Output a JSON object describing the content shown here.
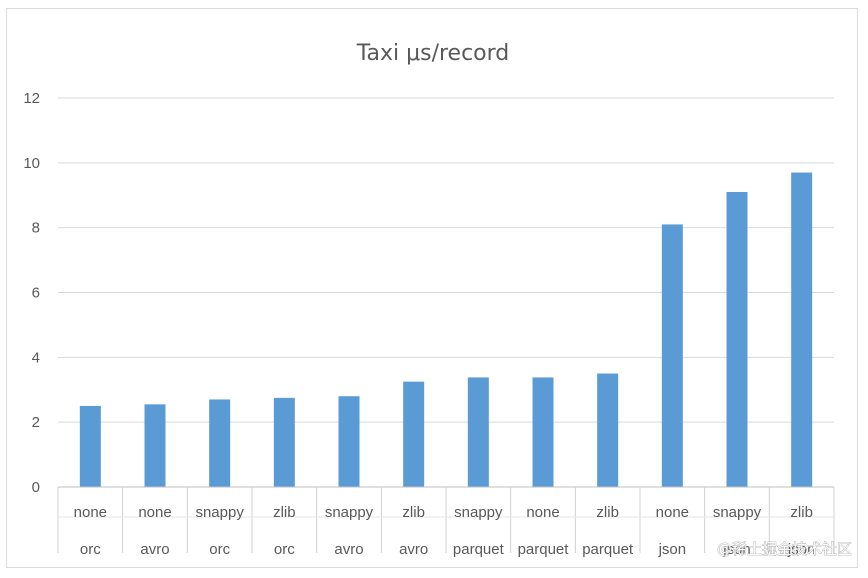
{
  "chart_data": {
    "type": "bar",
    "title": "Taxi μs/record",
    "categories": [
      [
        "none",
        "orc"
      ],
      [
        "none",
        "avro"
      ],
      [
        "snappy",
        "orc"
      ],
      [
        "zlib",
        "orc"
      ],
      [
        "snappy",
        "avro"
      ],
      [
        "zlib",
        "avro"
      ],
      [
        "snappy",
        "parquet"
      ],
      [
        "none",
        "parquet"
      ],
      [
        "zlib",
        "parquet"
      ],
      [
        "none",
        "json"
      ],
      [
        "snappy",
        "json"
      ],
      [
        "zlib",
        "json"
      ]
    ],
    "values": [
      2.5,
      2.55,
      2.7,
      2.75,
      2.8,
      3.25,
      3.38,
      3.38,
      3.5,
      8.1,
      9.1,
      9.7
    ],
    "xlabel": "",
    "ylabel": "",
    "ylim": [
      0,
      12
    ],
    "yticks": [
      0,
      2,
      4,
      6,
      8,
      10,
      12
    ],
    "grid": true,
    "legend": "none",
    "bar_color": "#5b9bd5",
    "grid_color": "#d9d9d9"
  },
  "watermark": "@稀土掘金技术社区"
}
